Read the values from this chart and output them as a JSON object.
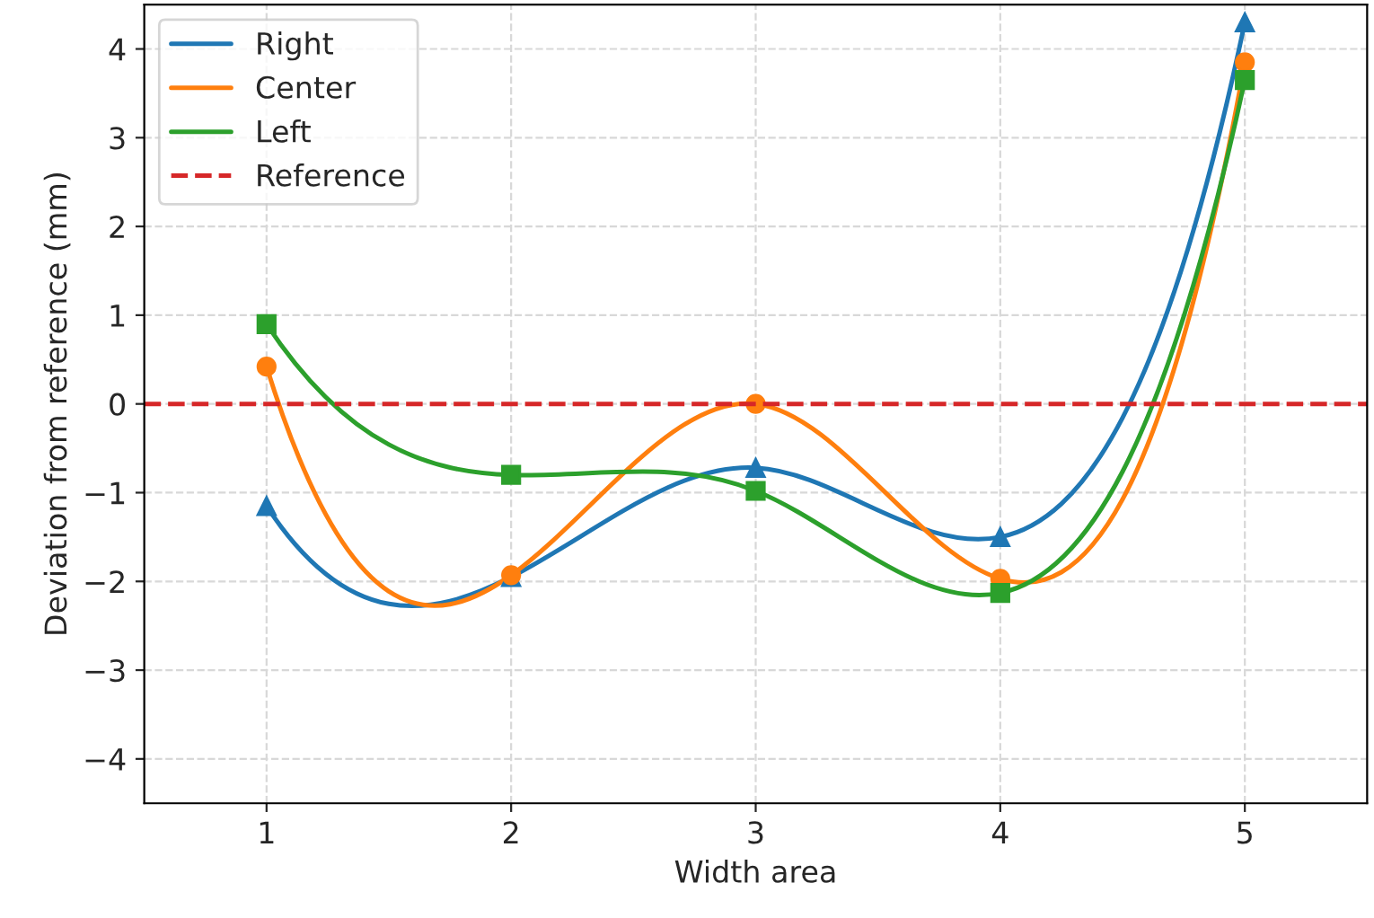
{
  "chart_data": {
    "type": "line",
    "xlabel": "Width area",
    "ylabel": "Deviation from reference (mm)",
    "x": [
      1,
      2,
      3,
      4,
      5
    ],
    "series": [
      {
        "name": "Right",
        "color": "#1f77b4",
        "marker": "triangle",
        "values": [
          -1.15,
          -1.95,
          -0.72,
          -1.5,
          4.3
        ]
      },
      {
        "name": "Center",
        "color": "#ff7f0e",
        "marker": "circle",
        "values": [
          0.42,
          -1.93,
          0.0,
          -1.97,
          3.85
        ]
      },
      {
        "name": "Left",
        "color": "#2ca02c",
        "marker": "square",
        "values": [
          0.9,
          -0.8,
          -0.98,
          -2.13,
          3.65
        ]
      }
    ],
    "ref_lines": [
      {
        "axis": "y",
        "value": 0,
        "label": "Reference",
        "color": "#d62728",
        "line_style": "dashed"
      }
    ],
    "xlim": [
      0.5,
      5.5
    ],
    "xticks": [
      1,
      2,
      3,
      4,
      5
    ],
    "ylim": [
      -4.5,
      4.5
    ],
    "yticks": [
      {
        "value": -4,
        "label": "−4"
      },
      {
        "value": -3,
        "label": "−3"
      },
      {
        "value": -2,
        "label": "−2"
      },
      {
        "value": -1,
        "label": "−1"
      },
      0,
      1,
      2,
      3,
      4
    ],
    "grid": true,
    "legend": "top left",
    "line_style": "solid"
  }
}
